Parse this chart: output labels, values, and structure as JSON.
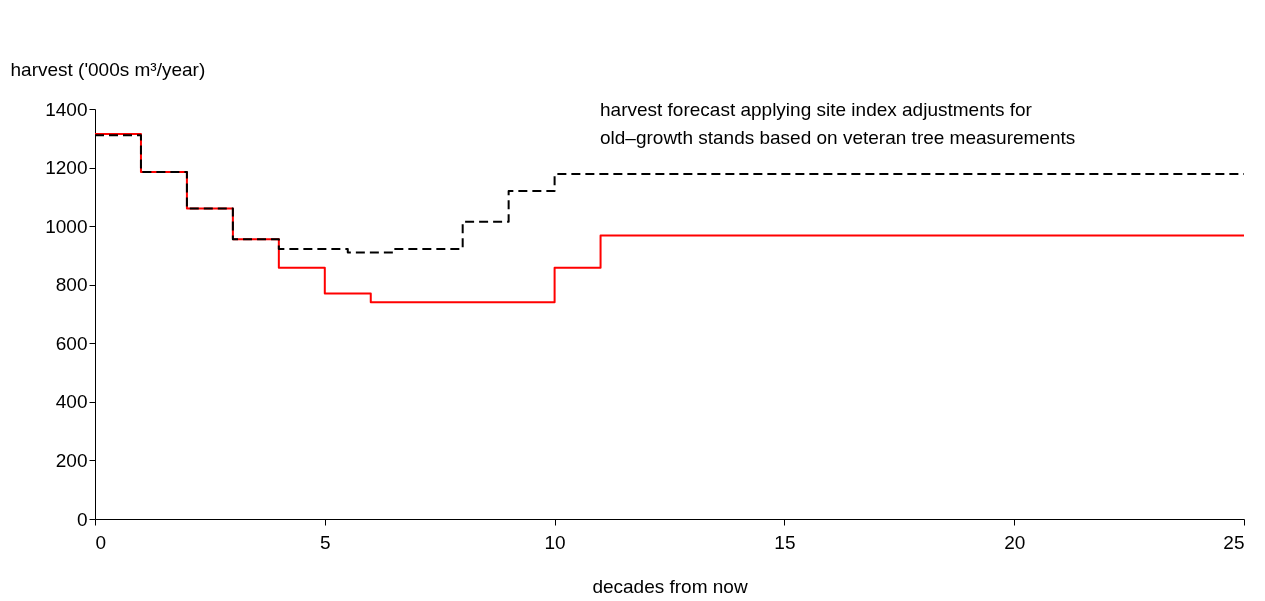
{
  "chart_data": {
    "type": "step",
    "xlabel": "decades from now",
    "ylabel": "harvest ('000s m³/year)",
    "xlim": [
      0,
      25
    ],
    "xticks": [
      0,
      5,
      10,
      15,
      20,
      25
    ],
    "ylim": [
      0,
      1400
    ],
    "yticks": [
      0,
      200,
      400,
      600,
      800,
      1000,
      1200,
      1400
    ],
    "grid": false,
    "series": [
      {
        "color": "#ff0000",
        "line_style": "solid",
        "x": [
          0,
          1,
          2,
          3,
          4,
          5,
          6,
          10,
          11,
          25
        ],
        "values": [
          1315,
          1185,
          1060,
          955,
          858,
          770,
          740,
          858,
          968,
          968
        ]
      },
      {
        "color": "#000000",
        "line_style": "dashed",
        "x": [
          0,
          1,
          2,
          3,
          4,
          5.5,
          6.5,
          8,
          9,
          10,
          25
        ],
        "values": [
          1310,
          1185,
          1060,
          955,
          922,
          910,
          922,
          1015,
          1120,
          1178,
          1178
        ]
      }
    ],
    "annotations": [
      "harvest forecast applying site index adjustments for\nold–growth stands  based on veteran tree measurements"
    ]
  }
}
